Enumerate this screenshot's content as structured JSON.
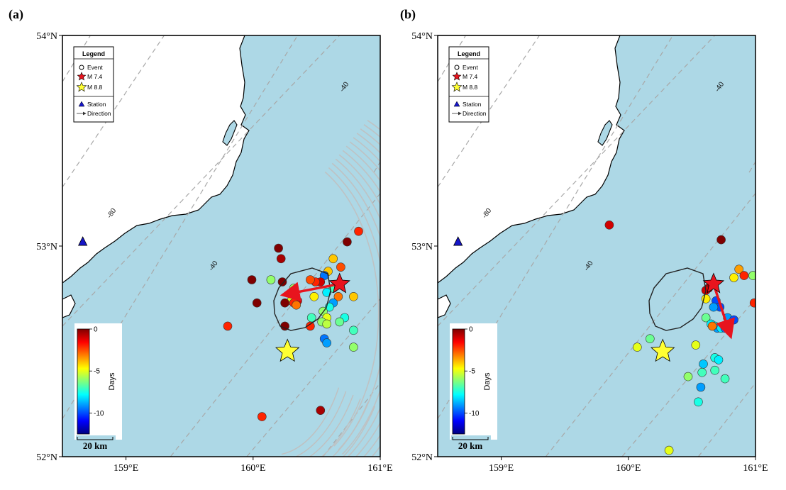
{
  "colors": {
    "sea": "#add8e6",
    "land": "#ffffff",
    "coast": "#000000",
    "contour": "#a8a8a8",
    "rupture_arcs": "#c0c0c0",
    "mainshock_star": "#e8141e",
    "m88_star": "#ffff33",
    "station": "#1515c8",
    "direction_arrow": "#e8141e"
  },
  "colormap": [
    "#00007f",
    "#0000ff",
    "#007fff",
    "#00ffff",
    "#7fff7f",
    "#ffff00",
    "#ff7f00",
    "#ff0000",
    "#7f0000"
  ],
  "map_extent": {
    "lon": [
      158.5,
      161.0
    ],
    "lat": [
      52.0,
      54.0
    ]
  },
  "axis_ticks": {
    "x": [
      {
        "value": 159,
        "label": "159°E"
      },
      {
        "value": 160,
        "label": "160°E"
      },
      {
        "value": 161,
        "label": "161°E"
      }
    ],
    "y": [
      {
        "value": 54,
        "label": "54°N"
      },
      {
        "value": 53,
        "label": "53°N"
      },
      {
        "value": 52,
        "label": "52°N"
      }
    ]
  },
  "legend": {
    "title": "Legend",
    "items": [
      {
        "symbol": "circle",
        "label": "Event"
      },
      {
        "symbol": "red-star",
        "label": "M 7.4"
      },
      {
        "symbol": "yellow-star",
        "label": "M 8.8"
      },
      {
        "symbol": "blue-triangle",
        "label": "Station"
      },
      {
        "symbol": "arrow",
        "label": "Direction"
      }
    ]
  },
  "colorbar": {
    "label": "Days",
    "range": [
      -12.5,
      0
    ],
    "ticks": [
      {
        "value": 0,
        "label": "0"
      },
      {
        "value": -5,
        "label": "-5"
      },
      {
        "value": -10,
        "label": "-10"
      }
    ]
  },
  "scalebar": {
    "label": "20 km"
  },
  "station": {
    "lon": 158.66,
    "lat": 53.02
  },
  "m88": {
    "lon": 160.27,
    "lat": 52.5
  },
  "slab_contours": [
    {
      "label": "-80",
      "label_lon": 158.9,
      "label_lat": 53.15
    },
    {
      "label": "-40",
      "label_lon": 159.7,
      "label_lat": 52.9
    },
    {
      "label": "-40",
      "label_lon": 160.73,
      "label_lat": 53.75
    }
  ],
  "panels": [
    {
      "label": "(a)",
      "mainshock": {
        "lon": 160.68,
        "lat": 52.82
      },
      "direction": {
        "from": [
          160.68,
          52.82
        ],
        "to": [
          160.25,
          52.77
        ]
      },
      "show_arcs": true,
      "events": [
        {
          "lon": 160.83,
          "lat": 53.07,
          "days": -2
        },
        {
          "lon": 160.74,
          "lat": 53.02,
          "days": 0
        },
        {
          "lon": 160.2,
          "lat": 52.99,
          "days": 0
        },
        {
          "lon": 160.22,
          "lat": 52.94,
          "days": -0.5
        },
        {
          "lon": 160.63,
          "lat": 52.94,
          "days": -4
        },
        {
          "lon": 160.69,
          "lat": 52.9,
          "days": -2.5
        },
        {
          "lon": 160.59,
          "lat": 52.88,
          "days": -4
        },
        {
          "lon": 160.56,
          "lat": 52.86,
          "days": -9.5
        },
        {
          "lon": 160.53,
          "lat": 52.83,
          "days": -1
        },
        {
          "lon": 160.49,
          "lat": 52.83,
          "days": -2
        },
        {
          "lon": 160.23,
          "lat": 52.83,
          "days": 0
        },
        {
          "lon": 159.99,
          "lat": 52.84,
          "days": 0
        },
        {
          "lon": 160.14,
          "lat": 52.84,
          "days": -6
        },
        {
          "lon": 160.45,
          "lat": 52.84,
          "days": -2.5
        },
        {
          "lon": 160.32,
          "lat": 52.8,
          "days": -6
        },
        {
          "lon": 160.63,
          "lat": 52.8,
          "days": -7
        },
        {
          "lon": 160.58,
          "lat": 52.78,
          "days": -8
        },
        {
          "lon": 160.79,
          "lat": 52.76,
          "days": -4
        },
        {
          "lon": 160.67,
          "lat": 52.76,
          "days": -3
        },
        {
          "lon": 160.48,
          "lat": 52.76,
          "days": -4.5
        },
        {
          "lon": 160.3,
          "lat": 52.74,
          "days": -5
        },
        {
          "lon": 160.35,
          "lat": 52.74,
          "days": -1
        },
        {
          "lon": 160.32,
          "lat": 52.73,
          "days": -2
        },
        {
          "lon": 160.34,
          "lat": 52.72,
          "days": -3
        },
        {
          "lon": 160.25,
          "lat": 52.73,
          "days": 0
        },
        {
          "lon": 160.03,
          "lat": 52.73,
          "days": 0
        },
        {
          "lon": 160.63,
          "lat": 52.73,
          "days": -9
        },
        {
          "lon": 160.6,
          "lat": 52.71,
          "days": -7.5
        },
        {
          "lon": 160.55,
          "lat": 52.69,
          "days": -6
        },
        {
          "lon": 160.46,
          "lat": 52.66,
          "days": -7
        },
        {
          "lon": 160.58,
          "lat": 52.66,
          "days": -5
        },
        {
          "lon": 160.72,
          "lat": 52.66,
          "days": -7.5
        },
        {
          "lon": 160.68,
          "lat": 52.64,
          "days": -6.5
        },
        {
          "lon": 160.54,
          "lat": 52.64,
          "days": -6
        },
        {
          "lon": 160.58,
          "lat": 52.63,
          "days": -5.5
        },
        {
          "lon": 160.25,
          "lat": 52.62,
          "days": 0
        },
        {
          "lon": 160.45,
          "lat": 52.62,
          "days": -2
        },
        {
          "lon": 159.8,
          "lat": 52.62,
          "days": -2
        },
        {
          "lon": 160.79,
          "lat": 52.6,
          "days": -7
        },
        {
          "lon": 160.56,
          "lat": 52.56,
          "days": -9.5
        },
        {
          "lon": 160.58,
          "lat": 52.54,
          "days": -9
        },
        {
          "lon": 160.79,
          "lat": 52.52,
          "days": -6
        },
        {
          "lon": 160.53,
          "lat": 52.22,
          "days": -0.5
        },
        {
          "lon": 160.07,
          "lat": 52.19,
          "days": -2
        }
      ]
    },
    {
      "label": "(b)",
      "mainshock": {
        "lon": 160.67,
        "lat": 52.82
      },
      "direction": {
        "from": [
          160.67,
          52.82
        ],
        "to": [
          160.8,
          52.58
        ]
      },
      "show_arcs": false,
      "events": [
        {
          "lon": 159.85,
          "lat": 53.1,
          "days": -1
        },
        {
          "lon": 160.73,
          "lat": 53.03,
          "days": 0
        },
        {
          "lon": 160.87,
          "lat": 52.89,
          "days": -3.5
        },
        {
          "lon": 160.83,
          "lat": 52.85,
          "days": -4.5
        },
        {
          "lon": 160.91,
          "lat": 52.86,
          "days": -2
        },
        {
          "lon": 160.98,
          "lat": 52.86,
          "days": -6
        },
        {
          "lon": 160.63,
          "lat": 52.8,
          "days": -0.5
        },
        {
          "lon": 160.61,
          "lat": 52.79,
          "days": -1
        },
        {
          "lon": 160.61,
          "lat": 52.75,
          "days": -4.5
        },
        {
          "lon": 160.69,
          "lat": 52.74,
          "days": -10
        },
        {
          "lon": 160.72,
          "lat": 52.71,
          "days": -10
        },
        {
          "lon": 160.67,
          "lat": 52.71,
          "days": -9
        },
        {
          "lon": 160.99,
          "lat": 52.73,
          "days": -2
        },
        {
          "lon": 160.61,
          "lat": 52.66,
          "days": -6.5
        },
        {
          "lon": 160.78,
          "lat": 52.66,
          "days": -9
        },
        {
          "lon": 160.83,
          "lat": 52.65,
          "days": -10
        },
        {
          "lon": 160.65,
          "lat": 52.63,
          "days": -8
        },
        {
          "lon": 160.68,
          "lat": 52.62,
          "days": -7.5
        },
        {
          "lon": 160.7,
          "lat": 52.61,
          "days": -9
        },
        {
          "lon": 160.73,
          "lat": 52.61,
          "days": -8
        },
        {
          "lon": 160.76,
          "lat": 52.61,
          "days": -9.5
        },
        {
          "lon": 160.66,
          "lat": 52.62,
          "days": -3
        },
        {
          "lon": 160.17,
          "lat": 52.56,
          "days": -6.5
        },
        {
          "lon": 160.07,
          "lat": 52.52,
          "days": -5
        },
        {
          "lon": 160.53,
          "lat": 52.53,
          "days": -5
        },
        {
          "lon": 160.68,
          "lat": 52.47,
          "days": -7.5
        },
        {
          "lon": 160.71,
          "lat": 52.46,
          "days": -8
        },
        {
          "lon": 160.59,
          "lat": 52.44,
          "days": -8.5
        },
        {
          "lon": 160.68,
          "lat": 52.41,
          "days": -7
        },
        {
          "lon": 160.58,
          "lat": 52.4,
          "days": -7
        },
        {
          "lon": 160.47,
          "lat": 52.38,
          "days": -6
        },
        {
          "lon": 160.76,
          "lat": 52.37,
          "days": -7
        },
        {
          "lon": 160.57,
          "lat": 52.33,
          "days": -9
        },
        {
          "lon": 160.55,
          "lat": 52.26,
          "days": -7.5
        },
        {
          "lon": 160.32,
          "lat": 52.03,
          "days": -5
        }
      ]
    }
  ]
}
